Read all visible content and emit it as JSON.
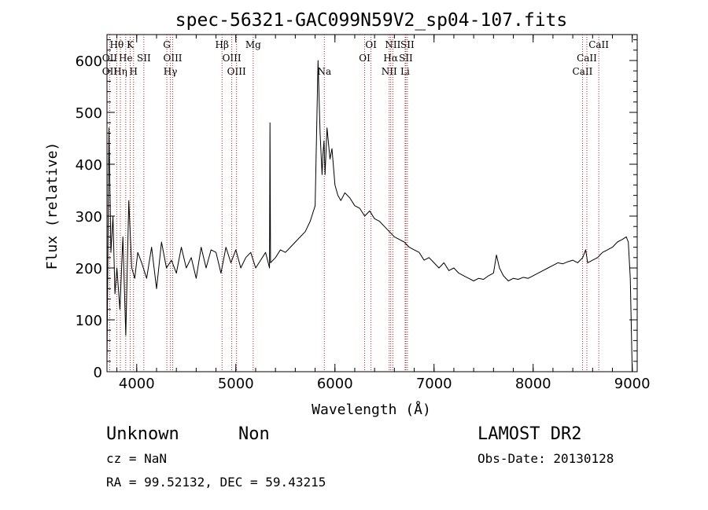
{
  "chart_data": {
    "type": "line",
    "title": "spec-56321-GAC099N59V2_sp04-107.fits",
    "xlabel": "Wavelength (Å)",
    "ylabel": "Flux (relative)",
    "xlim": [
      3700,
      9050
    ],
    "ylim": [
      0,
      650
    ],
    "xticks": [
      "4000",
      "5000",
      "6000",
      "7000",
      "8000",
      "9000"
    ],
    "yticks": [
      "0",
      "100",
      "200",
      "300",
      "400",
      "500",
      "600"
    ],
    "series": [
      {
        "x": [
          3700,
          3720,
          3740,
          3760,
          3780,
          3800,
          3830,
          3860,
          3890,
          3920,
          3950,
          3980,
          4010,
          4050,
          4100,
          4150,
          4200,
          4250,
          4300,
          4350,
          4400,
          4450,
          4500,
          4550,
          4600,
          4650,
          4700,
          4750,
          4800,
          4850,
          4900,
          4950,
          5000,
          5050,
          5100,
          5150,
          5200,
          5250,
          5300,
          5340,
          5345,
          5350,
          5400,
          5450,
          5500,
          5550,
          5600,
          5650,
          5700,
          5750,
          5800,
          5830,
          5850,
          5870,
          5880,
          5890,
          5900,
          5920,
          5950,
          5970,
          6000,
          6030,
          6060,
          6100,
          6150,
          6200,
          6250,
          6300,
          6350,
          6400,
          6450,
          6500,
          6550,
          6600,
          6650,
          6700,
          6750,
          6800,
          6850,
          6900,
          6950,
          7000,
          7050,
          7100,
          7150,
          7200,
          7250,
          7300,
          7350,
          7400,
          7450,
          7500,
          7550,
          7600,
          7630,
          7660,
          7700,
          7750,
          7800,
          7850,
          7900,
          7950,
          8000,
          8050,
          8100,
          8150,
          8200,
          8250,
          8300,
          8350,
          8400,
          8450,
          8500,
          8530,
          8550,
          8600,
          8650,
          8700,
          8750,
          8800,
          8850,
          8900,
          8940,
          8960,
          8980,
          9000
        ],
        "values": [
          20,
          470,
          230,
          300,
          150,
          200,
          120,
          260,
          70,
          330,
          200,
          180,
          230,
          210,
          180,
          240,
          160,
          250,
          200,
          215,
          190,
          240,
          200,
          220,
          180,
          240,
          200,
          235,
          230,
          190,
          240,
          210,
          235,
          200,
          220,
          230,
          200,
          215,
          230,
          200,
          480,
          210,
          220,
          235,
          230,
          240,
          250,
          260,
          270,
          290,
          320,
          600,
          460,
          380,
          420,
          445,
          380,
          470,
          410,
          430,
          360,
          340,
          330,
          345,
          335,
          320,
          315,
          300,
          310,
          295,
          290,
          280,
          270,
          260,
          255,
          250,
          240,
          235,
          230,
          215,
          220,
          210,
          200,
          210,
          195,
          200,
          190,
          185,
          180,
          175,
          180,
          178,
          185,
          190,
          225,
          200,
          185,
          175,
          180,
          178,
          182,
          180,
          185,
          190,
          195,
          200,
          205,
          210,
          208,
          212,
          215,
          210,
          220,
          235,
          210,
          215,
          220,
          230,
          235,
          240,
          250,
          255,
          260,
          250,
          180,
          0
        ]
      }
    ],
    "lines": [
      {
        "label": "Hθ",
        "wl": 3798,
        "row": 0
      },
      {
        "label": "K",
        "wl": 3934,
        "row": 0
      },
      {
        "label": "G",
        "wl": 4304,
        "row": 0
      },
      {
        "label": "Hβ",
        "wl": 4861,
        "row": 0
      },
      {
        "label": "Mg",
        "wl": 5175,
        "row": 0
      },
      {
        "label": "OI",
        "wl": 6364,
        "row": 0
      },
      {
        "label": "NII",
        "wl": 6584,
        "row": 0
      },
      {
        "label": "SII",
        "wl": 6731,
        "row": 0
      },
      {
        "label": "CaII",
        "wl": 8662,
        "row": 0
      },
      {
        "label": "OII",
        "wl": 3727,
        "row": 1
      },
      {
        "label": "He",
        "wl": 3889,
        "row": 1
      },
      {
        "label": "SII",
        "wl": 4072,
        "row": 1
      },
      {
        "label": "OIII",
        "wl": 4363,
        "row": 1
      },
      {
        "label": "OIII",
        "wl": 4959,
        "row": 1
      },
      {
        "label": "OI",
        "wl": 6300,
        "row": 1
      },
      {
        "label": "Hα",
        "wl": 6563,
        "row": 1
      },
      {
        "label": "SII",
        "wl": 6716,
        "row": 1
      },
      {
        "label": "CaII",
        "wl": 8542,
        "row": 1
      },
      {
        "label": "OII",
        "wl": 3727,
        "row": 2
      },
      {
        "label": "Hη",
        "wl": 3835,
        "row": 2
      },
      {
        "label": "H",
        "wl": 3968,
        "row": 2
      },
      {
        "label": "Hγ",
        "wl": 4340,
        "row": 2
      },
      {
        "label": "OIII",
        "wl": 5007,
        "row": 2
      },
      {
        "label": "Na",
        "wl": 5893,
        "row": 2
      },
      {
        "label": "NII",
        "wl": 6548,
        "row": 2
      },
      {
        "label": "Li",
        "wl": 6708,
        "row": 2
      },
      {
        "label": "CaII",
        "wl": 8498,
        "row": 2
      }
    ]
  },
  "info": {
    "class": "Unknown",
    "subclass": "Non",
    "cz": "cz = NaN",
    "coords": "RA =  99.52132, DEC =  59.43215",
    "survey": "LAMOST DR2",
    "obsdate": "Obs-Date: 20130128"
  }
}
